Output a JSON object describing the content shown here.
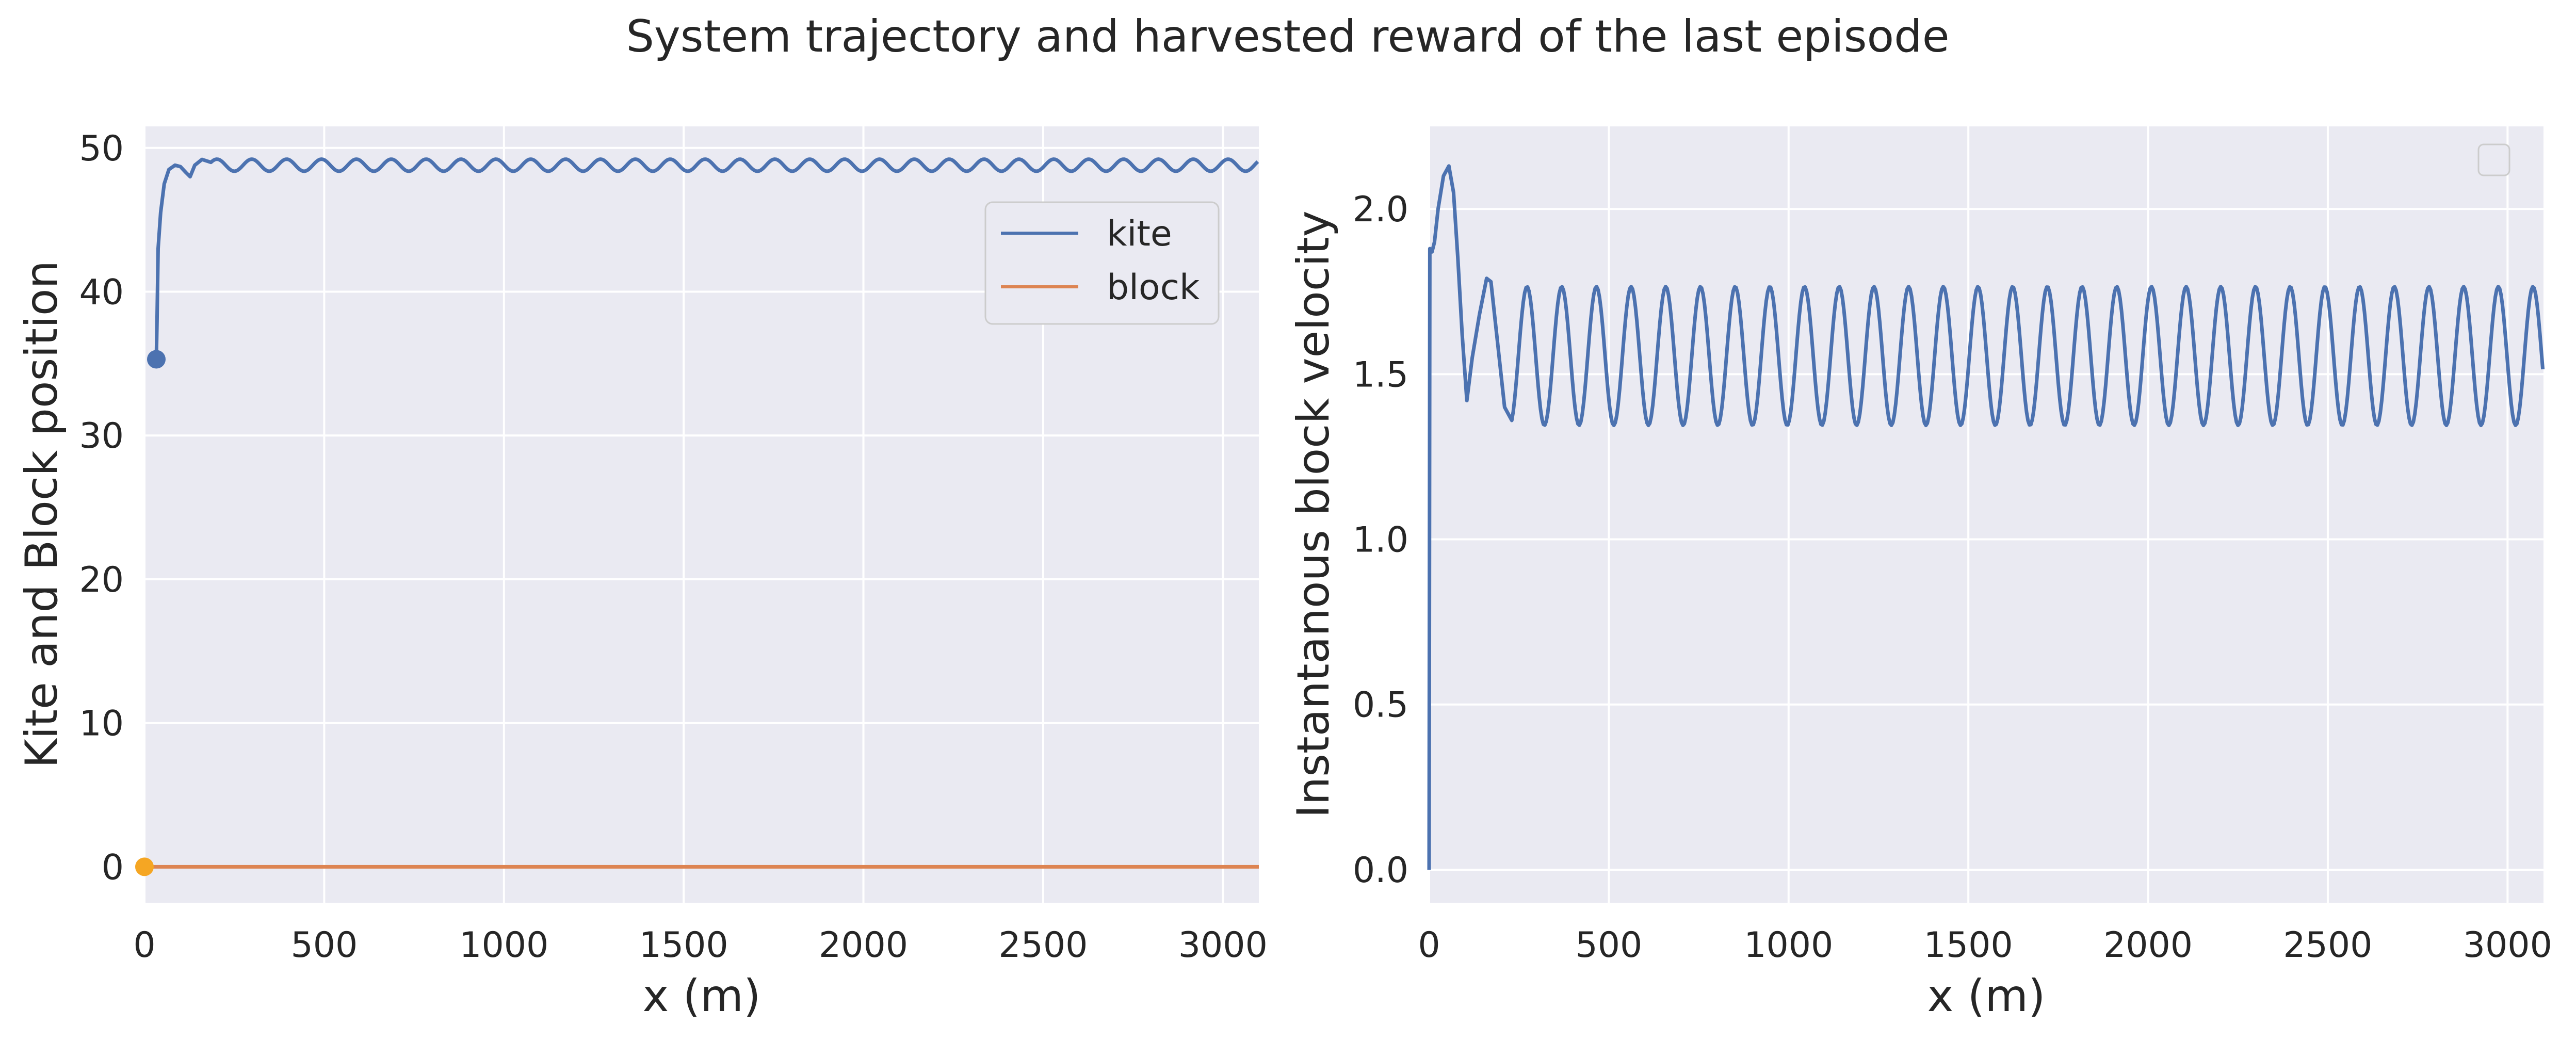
{
  "figure": {
    "title": "System trajectory and harvested reward of the last episode",
    "background": "#ffffff",
    "axes_facecolor": "#EAEAF2",
    "grid_color": "#ffffff"
  },
  "chart_data": [
    {
      "type": "line",
      "title": "",
      "xlabel": "x (m)",
      "ylabel": "Kite and Block position",
      "xlim": [
        0,
        3100
      ],
      "ylim": [
        -2.5,
        51.5
      ],
      "xticks": [
        0,
        500,
        1000,
        1500,
        2000,
        2500,
        3000
      ],
      "yticks": [
        0,
        10,
        20,
        30,
        40,
        50
      ],
      "grid": true,
      "legend": {
        "position": "upper-right",
        "entries": [
          "kite",
          "block"
        ]
      },
      "series": [
        {
          "name": "kite",
          "color": "#4C72B0",
          "points": [
            [
              33,
              35.3
            ],
            [
              35,
              38
            ],
            [
              38,
              43
            ],
            [
              45,
              45.5
            ],
            [
              55,
              47.5
            ],
            [
              68,
              48.5
            ],
            [
              85,
              48.8
            ],
            [
              100,
              48.7
            ],
            [
              115,
              48.3
            ],
            [
              127,
              48.0
            ],
            [
              140,
              48.8
            ],
            [
              160,
              49.2
            ],
            [
              185,
              49.0
            ]
          ],
          "oscillation": {
            "from_x": 185,
            "to_x": 3100,
            "center": 48.8,
            "amplitude": 0.42,
            "period": 97
          },
          "start_marker": [
            33,
            35.3
          ]
        },
        {
          "name": "block",
          "color": "#DD8452",
          "points": [
            [
              0,
              0
            ],
            [
              3100,
              0
            ]
          ],
          "start_marker": [
            0,
            0
          ],
          "start_marker_color": "#F5A623"
        }
      ]
    },
    {
      "type": "line",
      "title": "",
      "xlabel": "x (m)",
      "ylabel": "Instantanous block velocity",
      "xlim": [
        0,
        3100
      ],
      "ylim": [
        -0.1,
        2.25
      ],
      "xticks": [
        0,
        500,
        1000,
        1500,
        2000,
        2500,
        3000
      ],
      "yticks": [
        0.0,
        0.5,
        1.0,
        1.5,
        2.0
      ],
      "ytick_labels": [
        "0.0",
        "0.5",
        "1.0",
        "1.5",
        "2.0"
      ],
      "grid": true,
      "legend": {
        "position": "upper-right",
        "entries": []
      },
      "series": [
        {
          "color": "#4C72B0",
          "points": [
            [
              0,
              0.0
            ],
            [
              2,
              1.88
            ],
            [
              8,
              1.87
            ],
            [
              15,
              1.9
            ],
            [
              25,
              2.0
            ],
            [
              40,
              2.1
            ],
            [
              55,
              2.13
            ],
            [
              68,
              2.05
            ],
            [
              80,
              1.85
            ],
            [
              92,
              1.62
            ],
            [
              105,
              1.42
            ],
            [
              120,
              1.55
            ],
            [
              140,
              1.68
            ],
            [
              160,
              1.79
            ],
            [
              172,
              1.78
            ],
            [
              190,
              1.6
            ],
            [
              210,
              1.4
            ],
            [
              230,
              1.36
            ]
          ],
          "oscillation": {
            "from_x": 230,
            "to_x": 3100,
            "center": 1.555,
            "amplitude": 0.21,
            "period": 96.5
          }
        }
      ]
    }
  ]
}
